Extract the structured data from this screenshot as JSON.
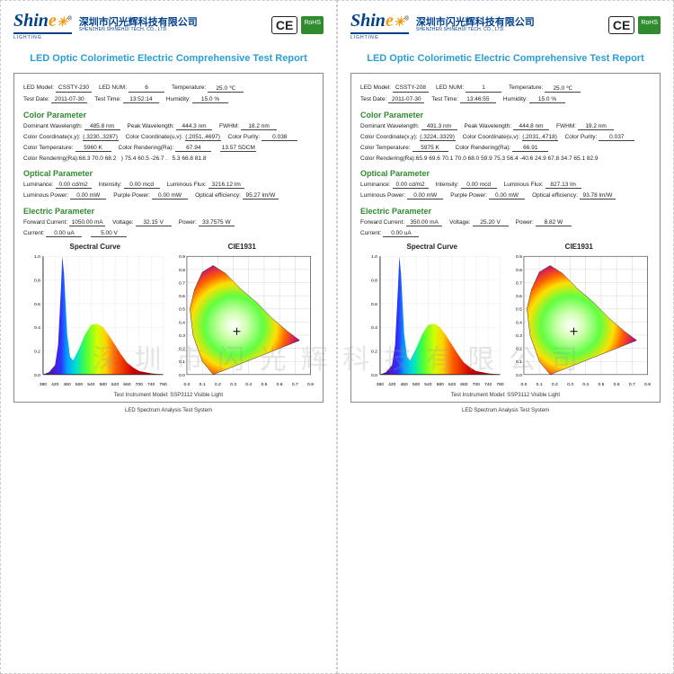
{
  "logo": {
    "brand_prefix": "Shin",
    "brand_e": "e",
    "sub": "LIGHTING",
    "reg": "®"
  },
  "company": {
    "cn": "深圳市闪光辉科技有限公司",
    "en": "SHENZHEN SHINEHUI TECH. CO., LTD."
  },
  "certs": {
    "ce": "CE",
    "rohs": "RoHS"
  },
  "title": "LED Optic Colorimetic Electric Comprehensive Test Report",
  "labels": {
    "led_model": "LED Model:",
    "led_num": "LED NUM:",
    "temperature": "Temperature:",
    "test_date": "Test Date:",
    "test_time": "Test Time:",
    "humidity": "Humidity:",
    "color_param": "Color Parameter",
    "optical_param": "Optical Parameter",
    "electric_param": "Electric Parameter",
    "dom_wl": "Dominant Wavelength:",
    "peak_wl": "Peak Wavelength:",
    "fwhm": "FWHM:",
    "cc_xy": "Color Coordinate(x,y):",
    "cc_uv": "Color Coordinate(u,v):",
    "cp": "Color Purity:",
    "ct": "Color Temperature:",
    "cri": "Color Rendering(Ra):",
    "cri2": "Color Rendering(Ra):",
    "lum": "Luminance:",
    "intens": "Intensity:",
    "flux": "Luminous Flux:",
    "lumpow": "Luminous Power:",
    "ppow": "Purple Power:",
    "oeff": "Optical efficiency:",
    "fwd": "Forward Current:",
    "volt": "Voltage:",
    "pow": "Power:",
    "curr": "Current:",
    "spec": "Spectral Curve",
    "cie": "CIE1931",
    "inst": "Test Instrument Model: SSP3112 Visible Light",
    "sys": "LED Spectrum Analysis Test System"
  },
  "left": {
    "led_model": "CSSTY-230",
    "led_num": "6",
    "temperature": "25.0 ℃",
    "test_date": "2011-07-30",
    "test_time": "13:52:14",
    "humidity": "15.0 %",
    "dom_wl": "485.8 nm",
    "peak_wl": "444.3 nm",
    "fwhm": "18.2 nm",
    "cc_xy": "(.3230,.3287)",
    "cc_uv": "(.2051,.4697)",
    "cp": "0.038",
    "ct": "5960 K",
    "cri": "67.94",
    "sdcm": "13.57 SDCM",
    "cri_row1": "68.3 70.0 68.2",
    "cri_row1b": ") 75.4 60.5 -26.7  .",
    "cri_row1c": "5.3 66.8 81.8",
    "lum": "0.00 cd/m2",
    "intens": "0.00 mcd",
    "flux": "3216.12 lm",
    "lumpow": "0.00 mW",
    "ppow": "0.00 mW",
    "oeff": "95.27 lm/W",
    "fwd": "1050.00 mA",
    "volt": "32.15 V",
    "pow": "33.7575 W",
    "curr": "0.00 uA",
    "v2": "5.00 V"
  },
  "right": {
    "led_model": "CSSTY-208",
    "led_num": "1",
    "temperature": "25.0 ℃",
    "test_date": "2011-07-30",
    "test_time": "13:46:55",
    "humidity": "15.0 %",
    "dom_wl": "491.3 nm",
    "peak_wl": "444.8 nm",
    "fwhm": "19.2 nm",
    "cc_xy": "(.3224,.3329)",
    "cc_uv": "(.2031,.4718)",
    "cp": "0.037",
    "ct": "5975 K",
    "cri": "66.91",
    "sdcm": "",
    "cri_row1": "65.9 69.6 70.1 70.0 68.0 59.9 75.3 56.4 -40.6 24.9 67.8 34.7 65.1 82.9",
    "lum": "0.00 cd/m2",
    "intens": "0.00 mcd",
    "flux": "827.13 lm",
    "lumpow": "0.00 mW",
    "ppow": "0.00 mW",
    "oeff": "93.78 lm/W",
    "fwd": "350.00 mA",
    "volt": "25.20 V",
    "pow": "8.82 W",
    "curr": "0.00 uA",
    "v2": ""
  },
  "watermark": "深 圳 市 闪 光 辉 科 技 有 限 公 司",
  "spectral": {
    "xmin": 380,
    "xmax": 780,
    "xticks": [
      380,
      420,
      460,
      500,
      540,
      580,
      620,
      660,
      700,
      740,
      780
    ],
    "ymin": 0,
    "ymax": 1.0,
    "yticks": [
      0,
      0.2,
      0.4,
      0.6,
      0.8,
      1.0
    ],
    "axis_color": "#333",
    "grid_color": "#bbb",
    "tick_fontsize": 6,
    "fill_stops": [
      {
        "x": 400,
        "c": "#5b0ea0"
      },
      {
        "x": 440,
        "c": "#3030ff"
      },
      {
        "x": 460,
        "c": "#00a0ff"
      },
      {
        "x": 490,
        "c": "#00e0d0"
      },
      {
        "x": 520,
        "c": "#40ff40"
      },
      {
        "x": 560,
        "c": "#d0ff00"
      },
      {
        "x": 590,
        "c": "#ffd000"
      },
      {
        "x": 620,
        "c": "#ff6000"
      },
      {
        "x": 680,
        "c": "#d00000"
      },
      {
        "x": 780,
        "c": "#800000"
      }
    ],
    "curve": [
      [
        380,
        0
      ],
      [
        400,
        0.02
      ],
      [
        420,
        0.08
      ],
      [
        430,
        0.25
      ],
      [
        440,
        0.75
      ],
      [
        444,
        1.0
      ],
      [
        450,
        0.85
      ],
      [
        460,
        0.35
      ],
      [
        470,
        0.15
      ],
      [
        480,
        0.12
      ],
      [
        500,
        0.22
      ],
      [
        520,
        0.34
      ],
      [
        540,
        0.42
      ],
      [
        560,
        0.43
      ],
      [
        580,
        0.4
      ],
      [
        600,
        0.33
      ],
      [
        620,
        0.25
      ],
      [
        640,
        0.17
      ],
      [
        660,
        0.1
      ],
      [
        680,
        0.06
      ],
      [
        700,
        0.03
      ],
      [
        740,
        0.01
      ],
      [
        780,
        0
      ]
    ]
  },
  "cie": {
    "xmin": 0,
    "xmax": 0.8,
    "ymin": 0,
    "ymax": 0.9,
    "boundary": [
      [
        0.17,
        0.0
      ],
      [
        0.1,
        0.1
      ],
      [
        0.04,
        0.3
      ],
      [
        0.02,
        0.5
      ],
      [
        0.05,
        0.65
      ],
      [
        0.1,
        0.78
      ],
      [
        0.17,
        0.83
      ],
      [
        0.25,
        0.77
      ],
      [
        0.35,
        0.65
      ],
      [
        0.45,
        0.55
      ],
      [
        0.55,
        0.43
      ],
      [
        0.65,
        0.33
      ],
      [
        0.73,
        0.26
      ],
      [
        0.17,
        0.0
      ]
    ],
    "cross": [
      0.323,
      0.329
    ]
  }
}
